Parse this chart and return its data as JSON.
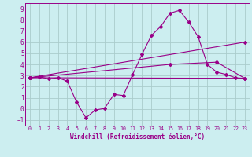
{
  "xlabel": "Windchill (Refroidissement éolien,°C)",
  "background_color": "#cceef0",
  "grid_color": "#aacccc",
  "line_color": "#990088",
  "xlim": [
    -0.5,
    23.5
  ],
  "ylim": [
    -1.5,
    9.5
  ],
  "yticks": [
    -1,
    0,
    1,
    2,
    3,
    4,
    5,
    6,
    7,
    8,
    9
  ],
  "xticks": [
    0,
    1,
    2,
    3,
    4,
    5,
    6,
    7,
    8,
    9,
    10,
    11,
    12,
    13,
    14,
    15,
    16,
    17,
    18,
    19,
    20,
    21,
    22,
    23
  ],
  "line1_x": [
    0,
    1,
    2,
    3,
    4,
    5,
    6,
    7,
    8,
    9,
    10,
    11,
    12,
    13,
    14,
    15,
    16,
    17,
    18,
    19,
    20,
    21,
    22,
    23
  ],
  "line1_y": [
    2.8,
    2.9,
    2.7,
    2.8,
    2.5,
    0.6,
    -0.8,
    -0.1,
    0.05,
    1.3,
    1.2,
    3.1,
    4.9,
    6.6,
    7.4,
    8.6,
    8.85,
    7.8,
    6.5,
    4.0,
    3.3,
    3.1,
    2.8,
    2.75
  ],
  "line2_x": [
    0,
    23
  ],
  "line2_y": [
    2.8,
    2.75
  ],
  "line3_x": [
    0,
    23
  ],
  "line3_y": [
    2.8,
    6.0
  ],
  "line4_x": [
    0,
    15,
    20,
    23
  ],
  "line4_y": [
    2.8,
    4.0,
    4.2,
    2.75
  ]
}
